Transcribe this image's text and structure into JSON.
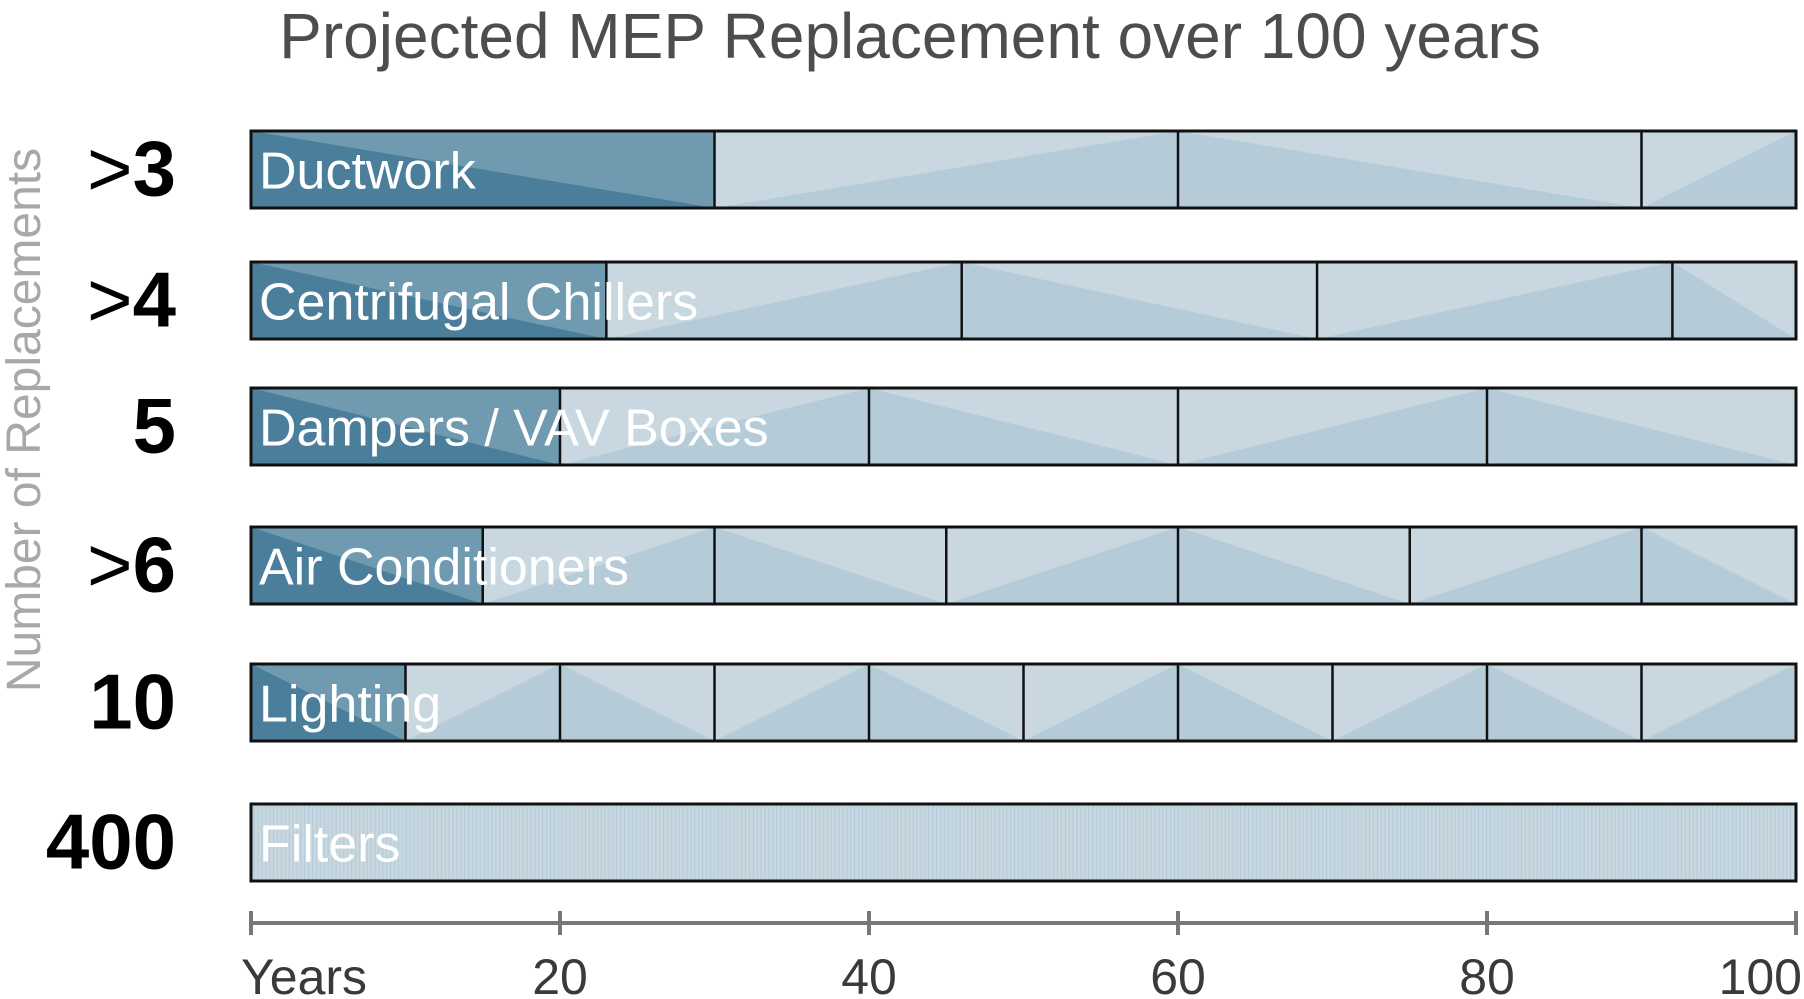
{
  "chart_data": {
    "type": "bar",
    "title": "Projected MEP Replacement over 100 years",
    "ylabel": "Number of Replacements",
    "xlabel": "Years",
    "xlim": [
      0,
      100
    ],
    "x_ticks": [
      0,
      20,
      40,
      60,
      80,
      100
    ],
    "x_tick_labels": [
      "Years",
      "20",
      "40",
      "60",
      "80",
      "100"
    ],
    "series": [
      {
        "name": "Ductwork",
        "replacements_label": ">3",
        "lifespan_years": 30
      },
      {
        "name": "Centrifugal Chillers",
        "replacements_label": ">4",
        "lifespan_years": 23
      },
      {
        "name": "Dampers / VAV Boxes",
        "replacements_label": "5",
        "lifespan_years": 20
      },
      {
        "name": "Air Conditioners",
        "replacements_label": ">6",
        "lifespan_years": 15
      },
      {
        "name": "Lighting",
        "replacements_label": "10",
        "lifespan_years": 10
      },
      {
        "name": "Filters",
        "replacements_label": "400",
        "lifespan_years": 0.25
      }
    ],
    "colors": {
      "first_cycle_dark": "#4a7e9a",
      "first_cycle_mid": "#6f9ab0",
      "cycle_light": "#c9d7e0",
      "cycle_mid": "#b5ccd8",
      "bar_border": "#111111",
      "axis": "#777777",
      "title": "#4d4d4f",
      "ylabel": "#a8a8a8"
    }
  }
}
